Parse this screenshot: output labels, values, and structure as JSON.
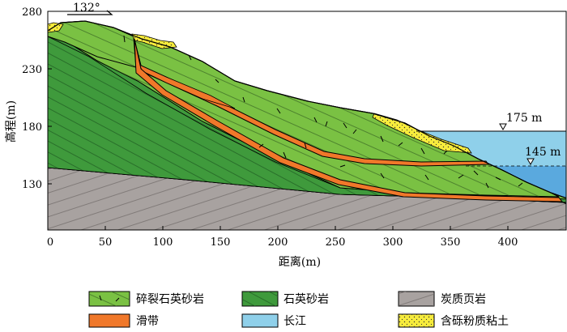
{
  "axes": {
    "xlabel": "距离(m)",
    "ylabel": "高程(m)",
    "xticks": [
      "0",
      "50",
      "100",
      "150",
      "200",
      "250",
      "300",
      "350",
      "400"
    ],
    "yticks": [
      "280",
      "230",
      "180",
      "130"
    ]
  },
  "annotations": {
    "direction": "132°",
    "water_level_high": "175 m",
    "water_level_low": "145 m"
  },
  "legend": [
    {
      "label": "碎裂石英砂岩",
      "swatch": "fractured"
    },
    {
      "label": "石英砂岩",
      "swatch": "sandstone"
    },
    {
      "label": "炭质页岩",
      "swatch": "shale"
    },
    {
      "label": "滑带",
      "swatch": "slipzone"
    },
    {
      "label": "长江",
      "swatch": "river"
    },
    {
      "label": "含砾粉质粘土",
      "swatch": "clay"
    }
  ],
  "colors": {
    "fractured": "#7ac143",
    "sandstone": "#3f9a3c",
    "shale": "#a8a2a0",
    "slipzone": "#f0782a",
    "river": "#8fd0ea",
    "river_deep": "#5aa9de",
    "clay": "#f7ec3c"
  }
}
